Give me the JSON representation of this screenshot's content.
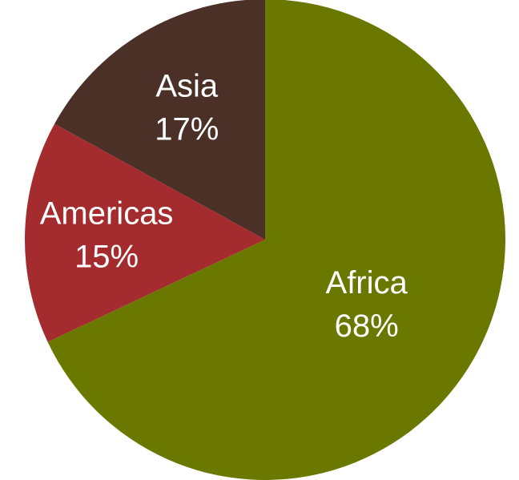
{
  "chart_data": {
    "type": "pie",
    "title": "",
    "categories": [
      "Africa",
      "Americas",
      "Asia"
    ],
    "values": [
      68,
      15,
      17
    ],
    "labels": [
      "68%",
      "15%",
      "17%"
    ],
    "colors": [
      "#6a7800",
      "#a52c2e",
      "#4b3028"
    ],
    "start": "top, clockwise",
    "legend": "none"
  }
}
